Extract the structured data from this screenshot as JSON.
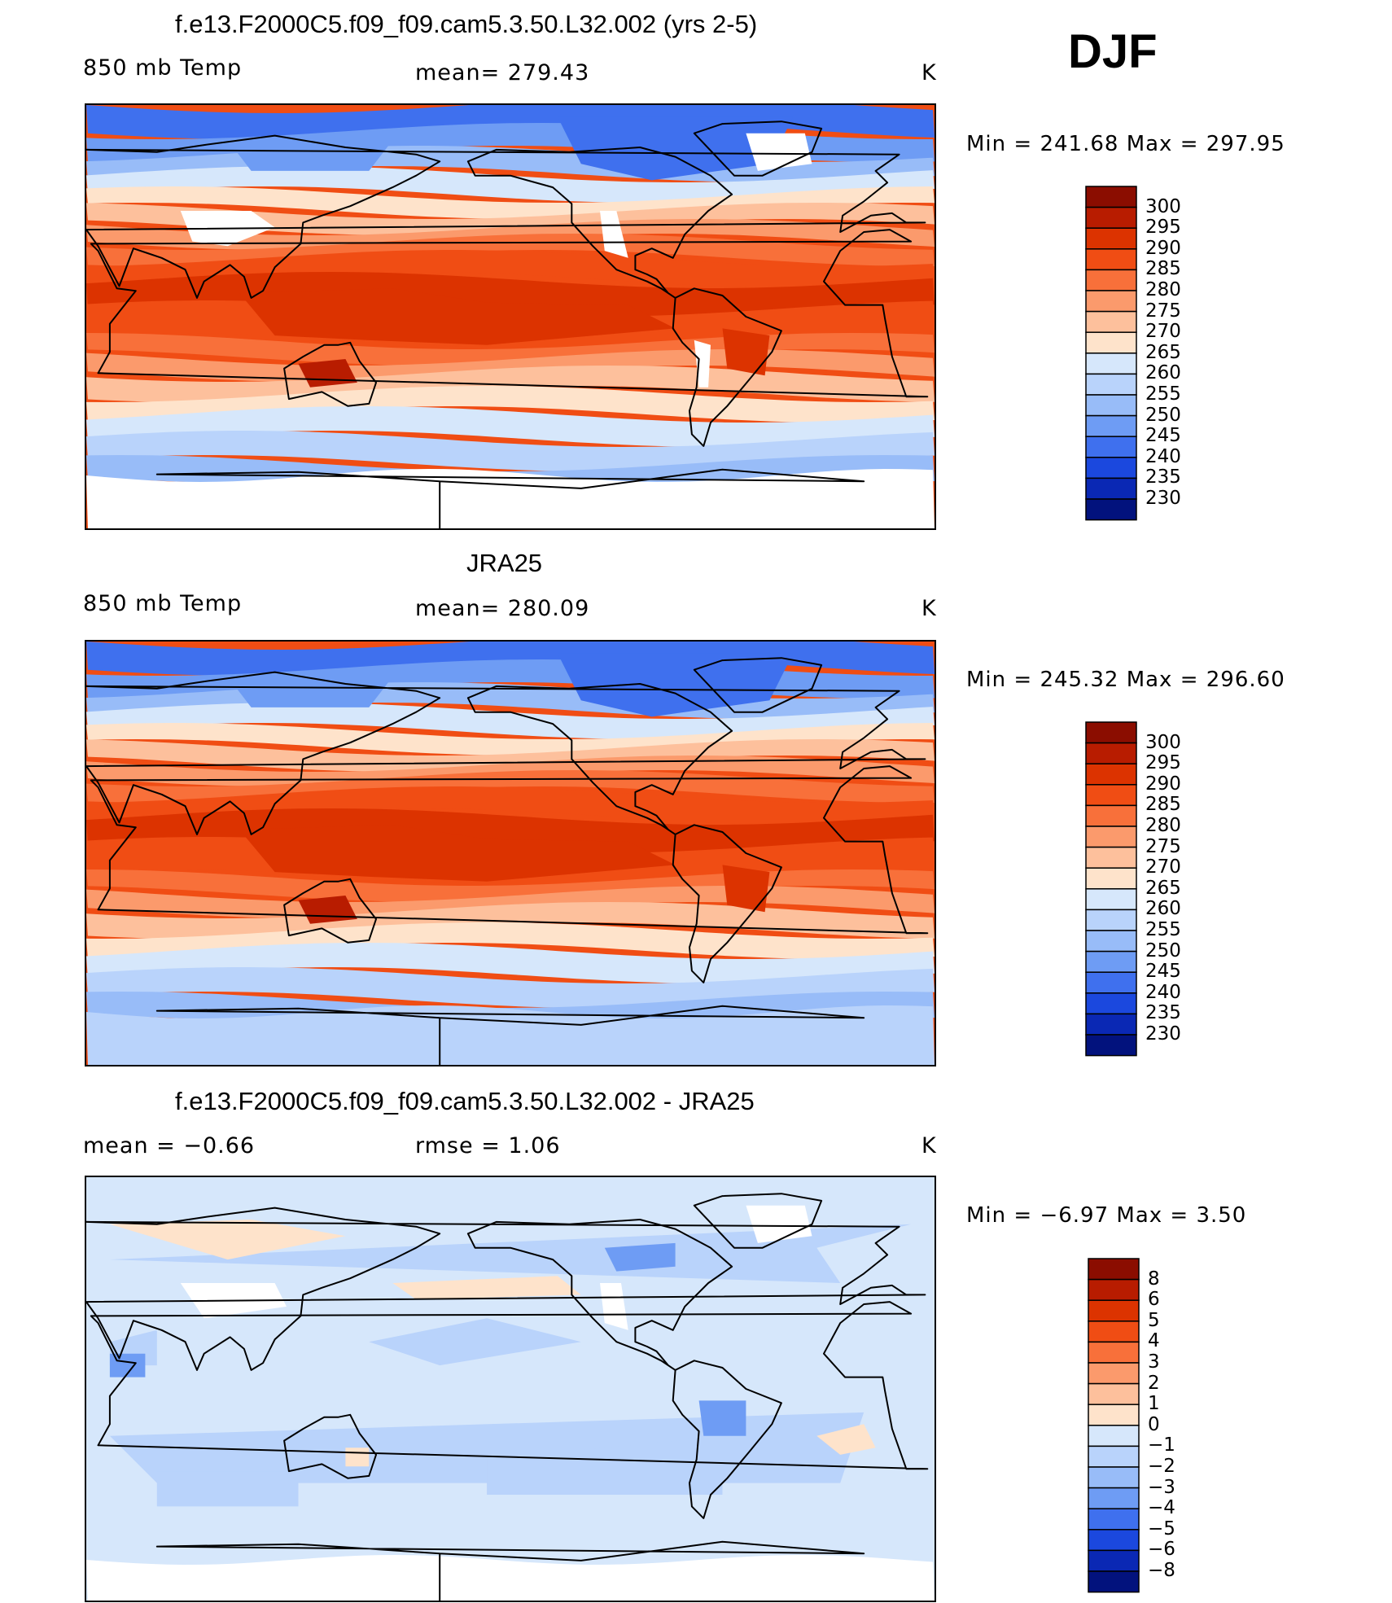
{
  "season": "DJF",
  "panels": [
    {
      "title": "f.e13.F2000C5.f09_f09.cam5.3.50.L32.002 (yrs 2-5)",
      "left_label": "850 mb Temp",
      "center_label": "mean=  279.43",
      "units": "K",
      "minmax": "Min  =  241.68  Max  =  297.95",
      "has_missing": true,
      "colorbar": {
        "labels": [
          "300",
          "295",
          "290",
          "285",
          "280",
          "275",
          "270",
          "265",
          "260",
          "255",
          "250",
          "245",
          "240",
          "235",
          "230"
        ],
        "colors": [
          "#8b0d00",
          "#b81c00",
          "#dc3300",
          "#f04d14",
          "#f8703a",
          "#fb9a6c",
          "#fdc09c",
          "#fee3cb",
          "#d6e7fb",
          "#b9d3fb",
          "#98bcf8",
          "#6e9cf4",
          "#3f70ee",
          "#1b48de",
          "#0a28b4",
          "#02127d"
        ]
      }
    },
    {
      "title": "JRA25",
      "left_label": "850 mb Temp",
      "center_label": "mean=  280.09",
      "units": "K",
      "minmax": "Min  =  245.32  Max  =  296.60",
      "has_missing": false,
      "colorbar": {
        "labels": [
          "300",
          "295",
          "290",
          "285",
          "280",
          "275",
          "270",
          "265",
          "260",
          "255",
          "250",
          "245",
          "240",
          "235",
          "230"
        ],
        "colors": [
          "#8b0d00",
          "#b81c00",
          "#dc3300",
          "#f04d14",
          "#f8703a",
          "#fb9a6c",
          "#fdc09c",
          "#fee3cb",
          "#d6e7fb",
          "#b9d3fb",
          "#98bcf8",
          "#6e9cf4",
          "#3f70ee",
          "#1b48de",
          "#0a28b4",
          "#02127d"
        ]
      }
    },
    {
      "title": "f.e13.F2000C5.f09_f09.cam5.3.50.L32.002 - JRA25",
      "left_label": "mean  =     −0.66",
      "center_label": "rmse  =      1.06",
      "units": "K",
      "minmax": "Min  =     −6.97  Max  =       3.50",
      "has_missing": true,
      "colorbar": {
        "labels": [
          "8",
          "6",
          "5",
          "4",
          "3",
          "2",
          "1",
          "0",
          "−1",
          "−2",
          "−3",
          "−4",
          "−5",
          "−6",
          "−8"
        ],
        "colors": [
          "#8b0d00",
          "#b81c00",
          "#dc3300",
          "#f04d14",
          "#f8703a",
          "#fb9a6c",
          "#fdc09c",
          "#fee3cb",
          "#d6e7fb",
          "#b9d3fb",
          "#98bcf8",
          "#6e9cf4",
          "#3f70ee",
          "#1b48de",
          "#0a28b4",
          "#02127d"
        ]
      }
    }
  ]
}
